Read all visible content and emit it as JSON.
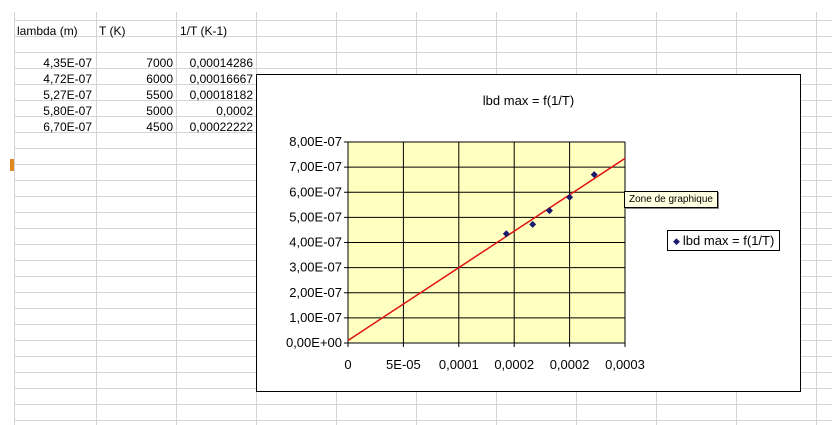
{
  "sheet": {
    "headers": {
      "col_a": "lambda (m)",
      "col_b": "T (K)",
      "col_c": "1/T (K-1)"
    },
    "rows": [
      {
        "lambda": "4,35E-07",
        "t": "7000",
        "inv_t": "0,00014286"
      },
      {
        "lambda": "4,72E-07",
        "t": "6000",
        "inv_t": "0,00016667"
      },
      {
        "lambda": "5,27E-07",
        "t": "5500",
        "inv_t": "0,00018182"
      },
      {
        "lambda": "5,80E-07",
        "t": "5000",
        "inv_t": "0,0002"
      },
      {
        "lambda": "6,70E-07",
        "t": "4500",
        "inv_t": "0,00022222"
      }
    ]
  },
  "tooltip": "Zone de graphique",
  "colors": {
    "plot_area": "#ffffc0",
    "trendline": "#e01010",
    "marker": "#1a1a6e",
    "grid": "#000000",
    "tooltip_bg": "#ffffe1"
  },
  "chart_data": {
    "type": "scatter",
    "title": "lbd max = f(1/T)",
    "legend": "right",
    "x_tick_labels": [
      "0",
      "5E-05",
      "0,0001",
      "0,0002",
      "0,0002",
      "0,0003"
    ],
    "y_tick_labels": [
      "0,00E+00",
      "1,00E-07",
      "2,00E-07",
      "3,00E-07",
      "4,00E-07",
      "5,00E-07",
      "6,00E-07",
      "7,00E-07",
      "8,00E-07"
    ],
    "xlim": [
      0,
      0.00025
    ],
    "ylim": [
      0,
      8e-07
    ],
    "grid": true,
    "series": [
      {
        "name": "lbd max = f(1/T)",
        "x": [
          0.00014286,
          0.00016667,
          0.00018182,
          0.0002,
          0.00022222
        ],
        "y": [
          4.35e-07,
          4.72e-07,
          5.27e-07,
          5.8e-07,
          6.7e-07
        ]
      }
    ],
    "trendline": {
      "x": [
        0,
        0.00025
      ],
      "y": [
        1e-08,
        7.35e-07
      ]
    }
  }
}
